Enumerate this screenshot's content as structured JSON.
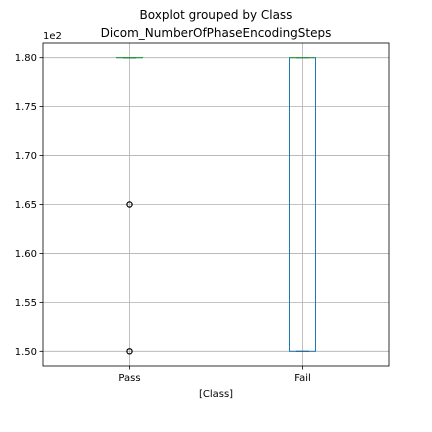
{
  "chart_data": {
    "type": "boxplot",
    "suptitle": "Boxplot grouped by Class",
    "title": "Dicom_NumberOfPhaseEncodingSteps",
    "xlabel": "[Class]",
    "ylabel": "",
    "offset_text": "1e2",
    "categories": [
      "Pass",
      "Fail"
    ],
    "ylim": [
      148.5,
      181.5
    ],
    "yticks": [
      150,
      155,
      160,
      165,
      170,
      175,
      180
    ],
    "ytick_labels": [
      "1.50",
      "1.55",
      "1.60",
      "1.65",
      "1.70",
      "1.75",
      "1.80"
    ],
    "grid": true,
    "boxes": [
      {
        "category": "Pass",
        "whislo": 180,
        "q1": 180,
        "med": 180,
        "q3": 180,
        "whishi": 180,
        "fliers": [
          165,
          150
        ]
      },
      {
        "category": "Fail",
        "whislo": 150,
        "q1": 150,
        "med": 180,
        "q3": 180,
        "whishi": 180,
        "fliers": []
      }
    ],
    "colors": {
      "box": "#1f77b4",
      "median": "#2ca02c",
      "whisker": "#000000",
      "grid": "#b0b0b0",
      "flier": "#000000"
    }
  }
}
